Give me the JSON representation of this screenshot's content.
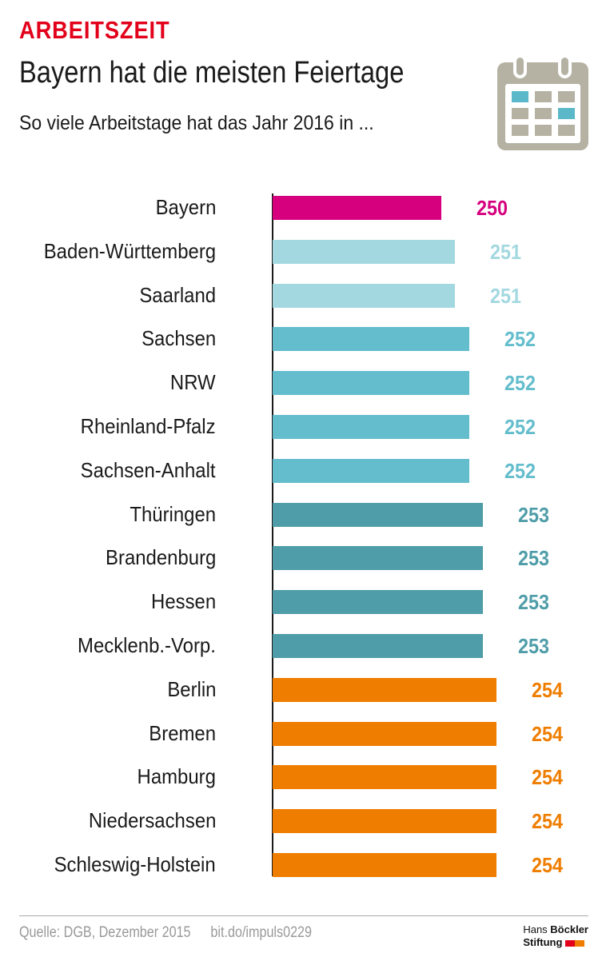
{
  "header": {
    "kicker": "ARBEITSZEIT",
    "title": "Bayern hat die meisten Feiertage",
    "subtitle": "So viele Arbeitstage hat das Jahr 2016 in ...",
    "icon": "calendar-icon"
  },
  "chart_data": {
    "type": "bar",
    "orientation": "horizontal",
    "title": "Bayern hat die meisten Feiertage",
    "categories": [
      "Bayern",
      "Baden-Württemberg",
      "Saarland",
      "Sachsen",
      "NRW",
      "Rheinland-Pfalz",
      "Sachsen-Anhalt",
      "Thüringen",
      "Brandenburg",
      "Hessen",
      "Mecklenb.-Vorp.",
      "Berlin",
      "Bremen",
      "Hamburg",
      "Niedersachsen",
      "Schleswig-Holstein"
    ],
    "values": [
      250,
      251,
      251,
      252,
      252,
      252,
      252,
      253,
      253,
      253,
      253,
      254,
      254,
      254,
      254,
      254
    ],
    "colors": {
      "250": "#d6007e",
      "251": "#a3d8e0",
      "252": "#63bdcc",
      "253": "#4f9da8",
      "254": "#ef7d00"
    },
    "data_labels": true,
    "grid": false
  },
  "footer": {
    "source": "Quelle: DGB, Dezember 2015",
    "link": "bit.do/impuls0229",
    "logo_line1a": "Hans ",
    "logo_line1b": "Böckler",
    "logo_line2": "Stiftung"
  }
}
